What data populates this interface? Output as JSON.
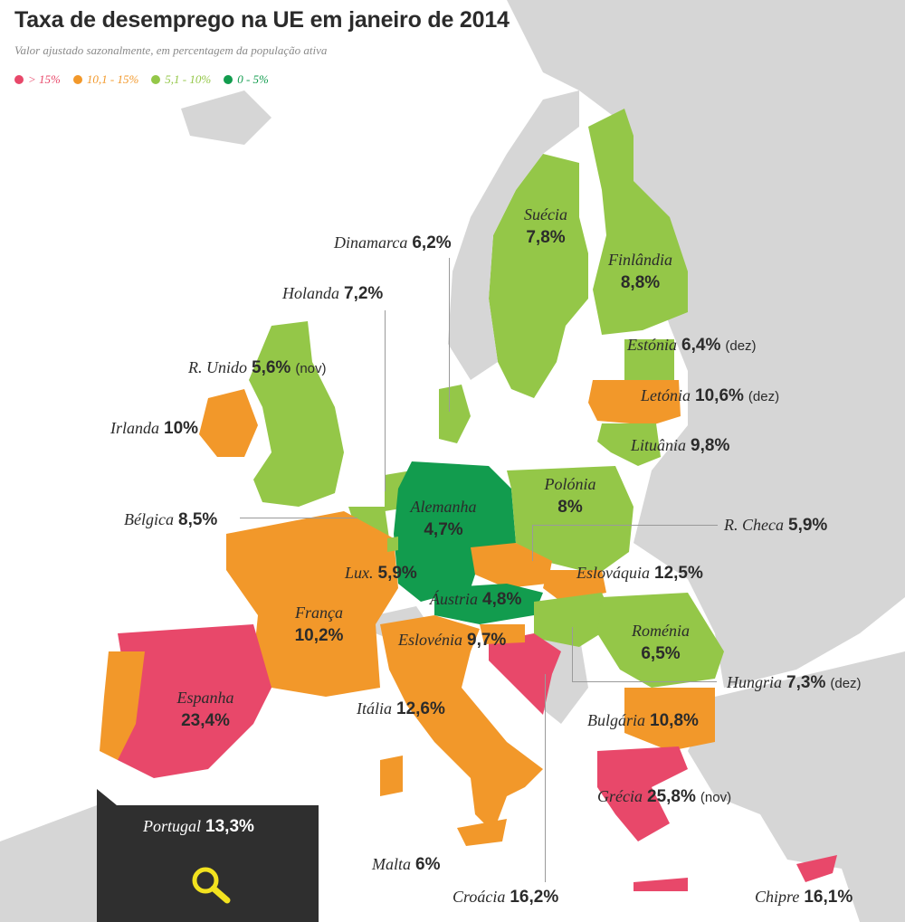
{
  "title": "Taxa de desemprego na UE em janeiro de 2014",
  "subtitle": "Valor ajustado sazonalmente, em percentagem da população ativa",
  "legend": [
    {
      "label": "> 15%",
      "color": "#e8486a"
    },
    {
      "label": "10,1 - 15%",
      "color": "#f2982a"
    },
    {
      "label": "5,1 - 10%",
      "color": "#94c748"
    },
    {
      "label": "0 - 5%",
      "color": "#129c4e"
    }
  ],
  "countries": {
    "dinamarca": {
      "name": "Dinamarca",
      "value": "6,2%"
    },
    "suecia": {
      "name": "Suécia",
      "value": "7,8%"
    },
    "finlandia": {
      "name": "Finlândia",
      "value": "8,8%"
    },
    "holanda": {
      "name": "Holanda",
      "value": "7,2%"
    },
    "estonia": {
      "name": "Estónia",
      "value": "6,4%",
      "note": "(dez)"
    },
    "runido": {
      "name": "R. Unido",
      "value": "5,6%",
      "note": "(nov)"
    },
    "letonia": {
      "name": "Letónia",
      "value": "10,6%",
      "note": "(dez)"
    },
    "irlanda": {
      "name": "Irlanda",
      "value": "10%"
    },
    "lituania": {
      "name": "Lituânia",
      "value": "9,8%"
    },
    "alemanha": {
      "name": "Alemanha",
      "value": "4,7%"
    },
    "polonia": {
      "name": "Polónia",
      "value": "8%"
    },
    "belgica": {
      "name": "Bélgica",
      "value": "8,5%"
    },
    "rcheca": {
      "name": "R. Checa",
      "value": "5,9%"
    },
    "lux": {
      "name": "Lux.",
      "value": "5,9%"
    },
    "eslovaquia": {
      "name": "Eslováquia",
      "value": "12,5%"
    },
    "franca": {
      "name": "França",
      "value": "10,2%"
    },
    "austria": {
      "name": "Áustria",
      "value": "4,8%"
    },
    "romenia": {
      "name": "Roménia",
      "value": "6,5%"
    },
    "eslovenia": {
      "name": "Eslovénia",
      "value": "9,7%"
    },
    "hungria": {
      "name": "Hungria",
      "value": "7,3%",
      "note": "(dez)"
    },
    "espanha": {
      "name": "Espanha",
      "value": "23,4%"
    },
    "italia": {
      "name": "Itália",
      "value": "12,6%"
    },
    "bulgaria": {
      "name": "Bulgária",
      "value": "10,8%"
    },
    "grecia": {
      "name": "Grécia",
      "value": "25,8%",
      "note": "(nov)"
    },
    "portugal": {
      "name": "Portugal",
      "value": "13,3%"
    },
    "malta": {
      "name": "Malta",
      "value": "6%"
    },
    "croacia": {
      "name": "Croácia",
      "value": "16,2%"
    },
    "chipre": {
      "name": "Chipre",
      "value": "16,1%"
    }
  },
  "colors": {
    "non_eu": "#d6d6d6",
    "water": "#ffffff",
    "high": "#e8486a",
    "mid": "#f2982a",
    "low": "#94c748",
    "lowest": "#129c4e",
    "box": "#2f2f2f",
    "search": "#f2e21f"
  },
  "icons": {
    "search": "magnifier-icon"
  }
}
